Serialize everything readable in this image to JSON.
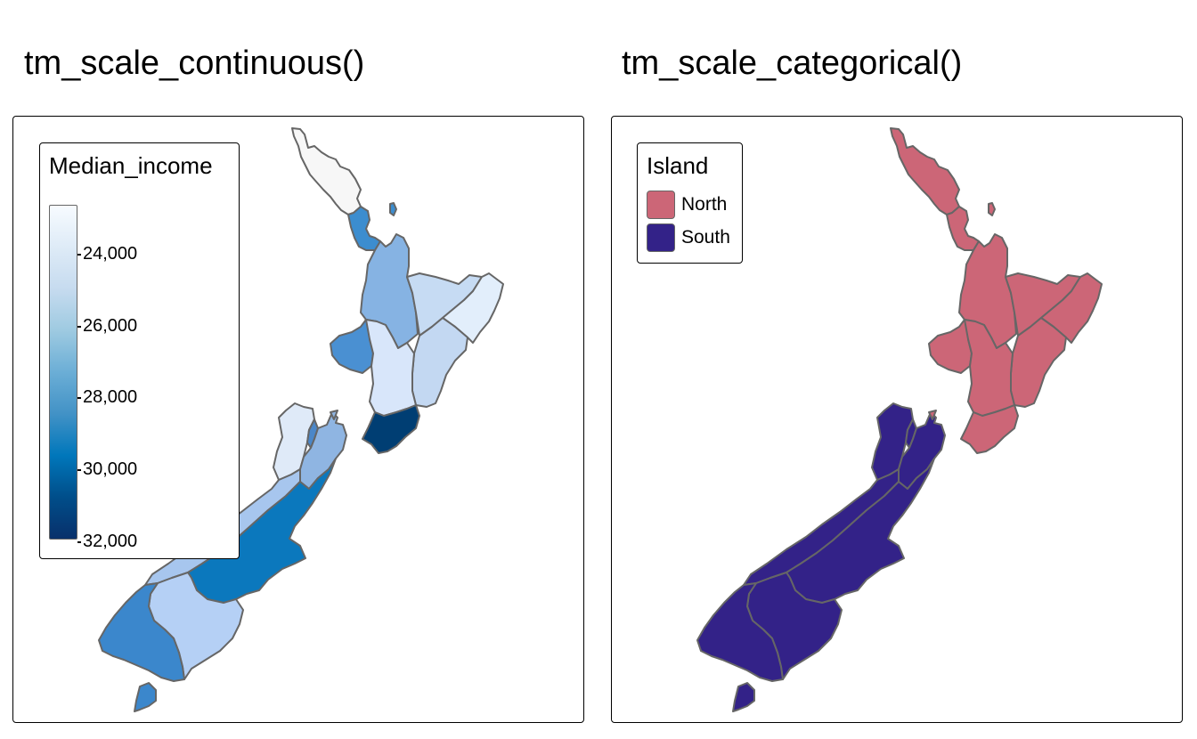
{
  "left_panel": {
    "title": "tm_scale_continuous()",
    "legend": {
      "title": "Median_income",
      "ticks": [
        "24,000",
        "26,000",
        "28,000",
        "30,000",
        "32,000"
      ],
      "gradient_colors": [
        "#F7FBFF",
        "#DEEBF7",
        "#C6DBEF",
        "#9ECAE1",
        "#6BAED6",
        "#4292C6",
        "#0077BB",
        "#004E8A",
        "#08306B"
      ]
    },
    "region_colors": {
      "northland": "#F7F7F7",
      "auckland": "#3C8DCF",
      "waikato": "#86B3E3",
      "bay_of_plenty": "#C6DBF3",
      "gisborne": "#E2EEFB",
      "hawkes_bay": "#C3D8F2",
      "taranaki": "#4A90D2",
      "manawatu_whanganui": "#D8E6FA",
      "wellington": "#003E73",
      "tasman": "#DFEAF8",
      "nelson": "#4B87C8",
      "marlborough": "#8FB5E2",
      "west_coast": "#A7C6EE",
      "canterbury": "#0B78BD",
      "otago": "#B5D0F5",
      "southland": "#3B87CC"
    }
  },
  "right_panel": {
    "title": "tm_scale_categorical()",
    "legend": {
      "title": "Island",
      "items": [
        {
          "label": "North",
          "color": "#CC6677"
        },
        {
          "label": "South",
          "color": "#332288"
        }
      ]
    }
  }
}
